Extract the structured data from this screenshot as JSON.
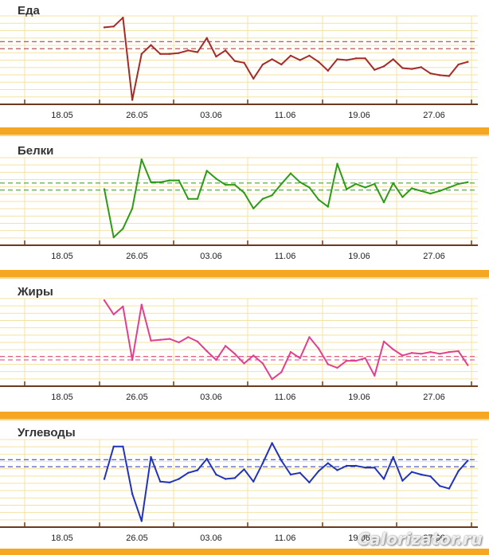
{
  "watermark": "Calorizator.ru",
  "colors": {
    "grid": "#f3e3a0",
    "axis": "#6b3a1a",
    "band": "#f5a623",
    "label": "#333333"
  },
  "chart_data": [
    {
      "type": "line",
      "title": "Еда",
      "color": "#a52a2a",
      "x_tick_labels": [
        "18.05",
        "26.05",
        "03.06",
        "11.06",
        "19.06",
        "27.06"
      ],
      "reference_lines": [
        0.63,
        0.71
      ],
      "x": [
        "23.05",
        "24.05",
        "25.05",
        "26.05",
        "27.05",
        "28.05",
        "29.05",
        "30.05",
        "31.05",
        "01.06",
        "02.06",
        "03.06",
        "04.06",
        "05.06",
        "06.06",
        "07.06",
        "08.06",
        "09.06",
        "10.06",
        "11.06",
        "12.06",
        "13.06",
        "14.06",
        "15.06",
        "16.06",
        "17.06",
        "18.06",
        "19.06",
        "20.06",
        "21.06",
        "22.06",
        "23.06",
        "24.06",
        "25.06",
        "26.06",
        "27.06",
        "28.06",
        "29.06",
        "30.06",
        "01.07"
      ],
      "values": [
        0.87,
        0.88,
        0.98,
        0.05,
        0.57,
        0.67,
        0.57,
        0.57,
        0.58,
        0.61,
        0.59,
        0.75,
        0.54,
        0.61,
        0.49,
        0.47,
        0.29,
        0.45,
        0.51,
        0.45,
        0.55,
        0.5,
        0.55,
        0.48,
        0.38,
        0.51,
        0.5,
        0.52,
        0.52,
        0.39,
        0.43,
        0.51,
        0.41,
        0.4,
        0.42,
        0.35,
        0.33,
        0.32,
        0.45,
        0.48
      ]
    },
    {
      "type": "line",
      "title": "Белки",
      "color": "#2e9a1a",
      "x_tick_labels": [
        "18.05",
        "26.05",
        "03.06",
        "11.06",
        "19.06",
        "27.06"
      ],
      "reference_lines": [
        0.63,
        0.71
      ],
      "x": [
        "23.05",
        "24.05",
        "25.05",
        "26.05",
        "27.05",
        "28.05",
        "29.05",
        "30.05",
        "31.05",
        "01.06",
        "02.06",
        "03.06",
        "04.06",
        "05.06",
        "06.06",
        "07.06",
        "08.06",
        "09.06",
        "10.06",
        "11.06",
        "12.06",
        "13.06",
        "14.06",
        "15.06",
        "16.06",
        "17.06",
        "18.06",
        "19.06",
        "20.06",
        "21.06",
        "22.06",
        "23.06",
        "24.06",
        "25.06",
        "26.06",
        "27.06",
        "28.06",
        "29.06",
        "30.06",
        "01.07"
      ],
      "values": [
        0.64,
        0.09,
        0.19,
        0.42,
        0.98,
        0.72,
        0.72,
        0.74,
        0.74,
        0.53,
        0.53,
        0.85,
        0.76,
        0.69,
        0.69,
        0.6,
        0.42,
        0.53,
        0.57,
        0.7,
        0.82,
        0.72,
        0.66,
        0.52,
        0.44,
        0.93,
        0.64,
        0.7,
        0.66,
        0.7,
        0.49,
        0.71,
        0.55,
        0.65,
        0.62,
        0.59,
        0.62,
        0.66,
        0.7,
        0.72
      ]
    },
    {
      "type": "line",
      "title": "Жиры",
      "color": "#e0408f",
      "x_tick_labels": [
        "18.05",
        "26.05",
        "03.06",
        "11.06",
        "19.06",
        "27.06"
      ],
      "reference_lines": [
        0.3,
        0.34
      ],
      "x": [
        "23.05",
        "24.05",
        "25.05",
        "26.05",
        "27.05",
        "28.05",
        "29.05",
        "30.05",
        "31.05",
        "01.06",
        "02.06",
        "03.06",
        "04.06",
        "05.06",
        "06.06",
        "07.06",
        "08.06",
        "09.06",
        "10.06",
        "11.06",
        "12.06",
        "13.06",
        "14.06",
        "15.06",
        "16.06",
        "17.06",
        "18.06",
        "19.06",
        "20.06",
        "21.06",
        "22.06",
        "23.06",
        "24.06",
        "25.06",
        "26.06",
        "27.06",
        "28.06",
        "29.06",
        "30.06",
        "01.07"
      ],
      "values": [
        0.98,
        0.82,
        0.91,
        0.3,
        0.93,
        0.52,
        0.53,
        0.54,
        0.5,
        0.56,
        0.51,
        0.4,
        0.3,
        0.46,
        0.37,
        0.26,
        0.35,
        0.26,
        0.08,
        0.16,
        0.39,
        0.32,
        0.56,
        0.43,
        0.25,
        0.21,
        0.29,
        0.29,
        0.32,
        0.12,
        0.51,
        0.42,
        0.35,
        0.38,
        0.37,
        0.39,
        0.37,
        0.39,
        0.4,
        0.24
      ]
    },
    {
      "type": "line",
      "title": "Углеводы",
      "color": "#2233bb",
      "x_tick_labels": [
        "18.05",
        "26.05",
        "03.06",
        "11.06",
        "19.06",
        "27.06"
      ],
      "reference_lines": [
        0.69,
        0.77
      ],
      "x": [
        "23.05",
        "24.05",
        "25.05",
        "26.05",
        "27.05",
        "28.05",
        "29.05",
        "30.05",
        "31.05",
        "01.06",
        "02.06",
        "03.06",
        "04.06",
        "05.06",
        "06.06",
        "07.06",
        "08.06",
        "09.06",
        "10.06",
        "11.06",
        "12.06",
        "13.06",
        "14.06",
        "15.06",
        "16.06",
        "17.06",
        "18.06",
        "19.06",
        "20.06",
        "21.06",
        "22.06",
        "23.06",
        "24.06",
        "25.06",
        "26.06",
        "27.06",
        "28.06",
        "29.06",
        "30.06",
        "01.07"
      ],
      "values": [
        0.55,
        0.92,
        0.92,
        0.38,
        0.07,
        0.8,
        0.52,
        0.51,
        0.55,
        0.62,
        0.65,
        0.78,
        0.6,
        0.55,
        0.56,
        0.66,
        0.52,
        0.73,
        0.96,
        0.76,
        0.6,
        0.62,
        0.51,
        0.64,
        0.73,
        0.65,
        0.7,
        0.7,
        0.68,
        0.68,
        0.55,
        0.8,
        0.53,
        0.63,
        0.6,
        0.58,
        0.47,
        0.44,
        0.64,
        0.76
      ]
    }
  ]
}
